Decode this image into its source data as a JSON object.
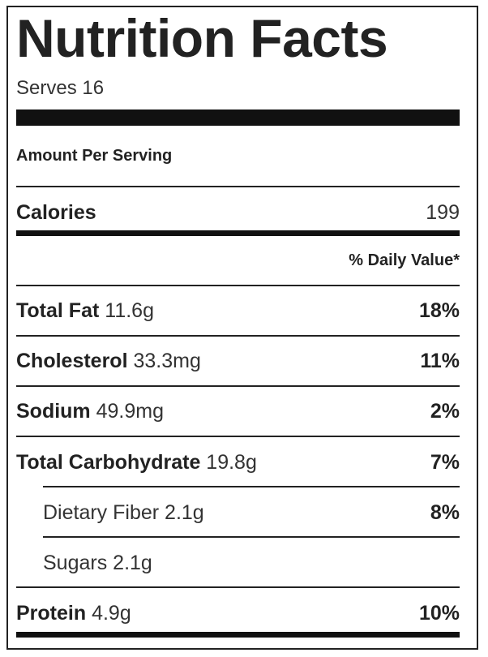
{
  "label": {
    "title": "Nutrition Facts",
    "serves": "Serves 16",
    "amount_per_serving": "Amount Per Serving",
    "calories": {
      "name": "Calories",
      "value": "199"
    },
    "daily_value_header": "% Daily Value*",
    "nutrients": [
      {
        "name": "Total Fat",
        "amount": "11.6g",
        "daily_value": "18%"
      },
      {
        "name": "Cholesterol",
        "amount": "33.3mg",
        "daily_value": "11%"
      },
      {
        "name": "Sodium",
        "amount": "49.9mg",
        "daily_value": "2%"
      },
      {
        "name": "Total Carbohydrate",
        "amount": "19.8g",
        "daily_value": "7%"
      },
      {
        "name": "Dietary Fiber",
        "amount": "2.1g",
        "daily_value": "8%",
        "sub": true
      },
      {
        "name": "Sugars",
        "amount": "2.1g",
        "daily_value": "",
        "sub": true
      },
      {
        "name": "Protein",
        "amount": "4.9g",
        "daily_value": "10%"
      }
    ]
  },
  "colors": {
    "text": "#222222",
    "rule": "#222222",
    "background": "#ffffff"
  }
}
